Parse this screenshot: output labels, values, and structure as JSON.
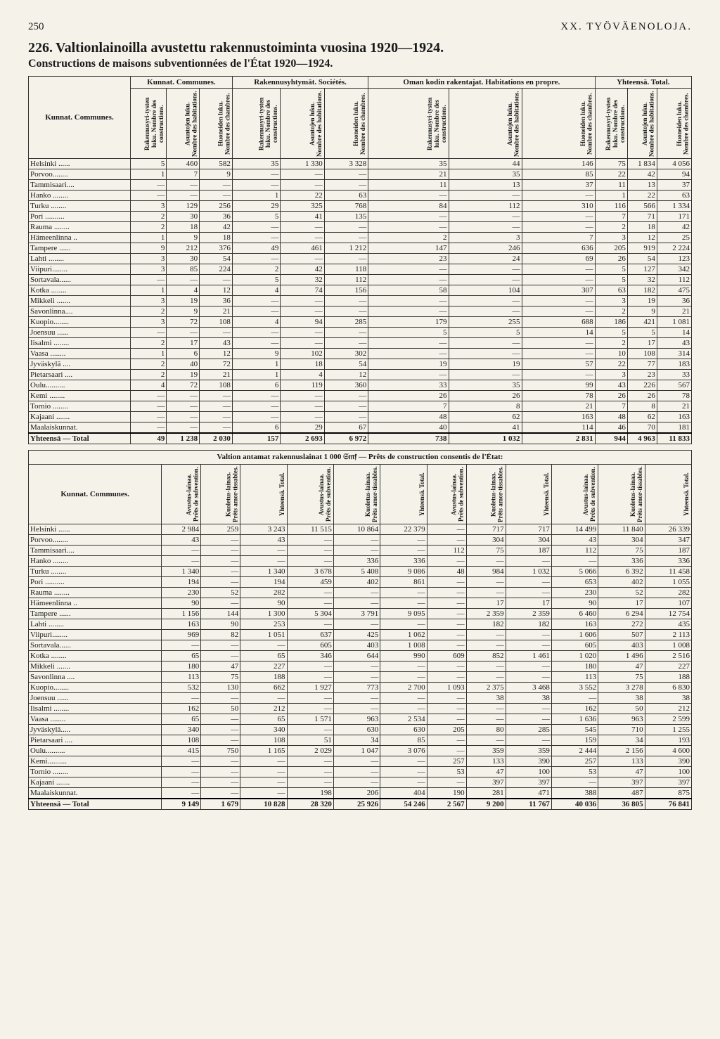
{
  "page": {
    "number": "250",
    "section": "XX. TYÖVÄENOLOJA."
  },
  "title": {
    "num": "226.",
    "main": "Valtionlainoilla avustettu rakennustoiminta vuosina 1920—1924.",
    "sub": "Constructions de maisons subventionnées de l'État 1920—1924."
  },
  "t1": {
    "rowLabel": "Kunnat.\nCommunes.",
    "groups": [
      "Kunnat. Communes.",
      "Rakennusyhtymät. Sociétés.",
      "Oman kodin rakentajat. Habitations en propre.",
      "Yhteensä. Total."
    ],
    "cols": [
      "Rakennusyri-tysten luku. Nombre des constructions.",
      "Asuntojen luku. Nombre des habitations.",
      "Huoneiden luku. Nombre des chambres.",
      "Rakennusyri-tysten luku. Nombre des constructions.",
      "Asuntojen luku. Nombre des habitations.",
      "Huoneiden luku. Nombre des chambres.",
      "Rakennusyri-tysten luku. Nombre des constructions.",
      "Asuntojen luku. Nombre des habitations.",
      "Huoneiden luku. Nombre des chambres.",
      "Rakennusyri-tysten luku. Nombre des constructions.",
      "Asuntojen luku. Nombre des habitations.",
      "Huoneiden luku. Nombre des chambres."
    ],
    "rows": [
      {
        "n": "Helsinki ......",
        "v": [
          "5",
          "460",
          "582",
          "35",
          "1 330",
          "3 328",
          "35",
          "44",
          "146",
          "75",
          "1 834",
          "4 056"
        ]
      },
      {
        "n": "Porvoo........",
        "v": [
          "1",
          "7",
          "9",
          "—",
          "—",
          "—",
          "21",
          "35",
          "85",
          "22",
          "42",
          "94"
        ]
      },
      {
        "n": "Tammisaari....",
        "v": [
          "—",
          "—",
          "—",
          "—",
          "—",
          "—",
          "11",
          "13",
          "37",
          "11",
          "13",
          "37"
        ]
      },
      {
        "n": "Hanko ........",
        "v": [
          "—",
          "—",
          "—",
          "1",
          "22",
          "63",
          "—",
          "—",
          "—",
          "1",
          "22",
          "63"
        ]
      },
      {
        "n": "Turku ........",
        "v": [
          "3",
          "129",
          "256",
          "29",
          "325",
          "768",
          "84",
          "112",
          "310",
          "116",
          "566",
          "1 334"
        ]
      },
      {
        "n": "Pori ..........",
        "v": [
          "2",
          "30",
          "36",
          "5",
          "41",
          "135",
          "—",
          "—",
          "—",
          "7",
          "71",
          "171"
        ]
      },
      {
        "n": "Rauma ........",
        "v": [
          "2",
          "18",
          "42",
          "—",
          "—",
          "—",
          "—",
          "—",
          "—",
          "2",
          "18",
          "42"
        ]
      },
      {
        "n": "Hämeenlinna ..",
        "v": [
          "1",
          "9",
          "18",
          "—",
          "—",
          "—",
          "2",
          "3",
          "7",
          "3",
          "12",
          "25"
        ]
      },
      {
        "n": "Tampere ......",
        "v": [
          "9",
          "212",
          "376",
          "49",
          "461",
          "1 212",
          "147",
          "246",
          "636",
          "205",
          "919",
          "2 224"
        ]
      },
      {
        "n": "Lahti ........",
        "v": [
          "3",
          "30",
          "54",
          "—",
          "—",
          "—",
          "23",
          "24",
          "69",
          "26",
          "54",
          "123"
        ]
      },
      {
        "n": "Viipuri........",
        "v": [
          "3",
          "85",
          "224",
          "2",
          "42",
          "118",
          "—",
          "—",
          "—",
          "5",
          "127",
          "342"
        ]
      },
      {
        "n": "Sortavala......",
        "v": [
          "—",
          "—",
          "—",
          "5",
          "32",
          "112",
          "—",
          "—",
          "—",
          "5",
          "32",
          "112"
        ]
      },
      {
        "n": "Kotka ........",
        "v": [
          "1",
          "4",
          "12",
          "4",
          "74",
          "156",
          "58",
          "104",
          "307",
          "63",
          "182",
          "475"
        ]
      },
      {
        "n": "Mikkeli .......",
        "v": [
          "3",
          "19",
          "36",
          "—",
          "—",
          "—",
          "—",
          "—",
          "—",
          "3",
          "19",
          "36"
        ]
      },
      {
        "n": "Savonlinna....",
        "v": [
          "2",
          "9",
          "21",
          "—",
          "—",
          "—",
          "—",
          "—",
          "—",
          "2",
          "9",
          "21"
        ]
      },
      {
        "n": "Kuopio........",
        "v": [
          "3",
          "72",
          "108",
          "4",
          "94",
          "285",
          "179",
          "255",
          "688",
          "186",
          "421",
          "1 081"
        ]
      },
      {
        "n": "Joensuu ......",
        "v": [
          "—",
          "—",
          "—",
          "—",
          "—",
          "—",
          "5",
          "5",
          "14",
          "5",
          "5",
          "14"
        ]
      },
      {
        "n": "Iisalmi ........",
        "v": [
          "2",
          "17",
          "43",
          "—",
          "—",
          "—",
          "—",
          "—",
          "—",
          "2",
          "17",
          "43"
        ]
      },
      {
        "n": "Vaasa ........",
        "v": [
          "1",
          "6",
          "12",
          "9",
          "102",
          "302",
          "—",
          "—",
          "—",
          "10",
          "108",
          "314"
        ]
      },
      {
        "n": "Jyväskylä ....",
        "v": [
          "2",
          "40",
          "72",
          "1",
          "18",
          "54",
          "19",
          "19",
          "57",
          "22",
          "77",
          "183"
        ]
      },
      {
        "n": "Pietarsaari ....",
        "v": [
          "2",
          "19",
          "21",
          "1",
          "4",
          "12",
          "—",
          "—",
          "—",
          "3",
          "23",
          "33"
        ]
      },
      {
        "n": "Oulu..........",
        "v": [
          "4",
          "72",
          "108",
          "6",
          "119",
          "360",
          "33",
          "35",
          "99",
          "43",
          "226",
          "567"
        ]
      },
      {
        "n": "Kemi ........",
        "v": [
          "—",
          "—",
          "—",
          "—",
          "—",
          "—",
          "26",
          "26",
          "78",
          "26",
          "26",
          "78"
        ]
      },
      {
        "n": "Tornio ........",
        "v": [
          "—",
          "—",
          "—",
          "—",
          "—",
          "—",
          "7",
          "8",
          "21",
          "7",
          "8",
          "21"
        ]
      },
      {
        "n": "Kajaani .......",
        "v": [
          "—",
          "—",
          "—",
          "—",
          "—",
          "—",
          "48",
          "62",
          "163",
          "48",
          "62",
          "163"
        ]
      },
      {
        "n": "Maalaiskunnat.",
        "v": [
          "—",
          "—",
          "—",
          "6",
          "29",
          "67",
          "40",
          "41",
          "114",
          "46",
          "70",
          "181"
        ]
      }
    ],
    "total": {
      "n": "Yhteensä — Total",
      "v": [
        "49",
        "1 238",
        "2 030",
        "157",
        "2 693",
        "6 972",
        "738",
        "1 032",
        "2 831",
        "944",
        "4 963",
        "11 833"
      ]
    }
  },
  "t2": {
    "caption": "Valtion antamat rakennuslainat 1 000 𝔖𝔪𝔣 — Prêts de construction consentis de l'État:",
    "rowLabel": "Kunnat.\nCommunes.",
    "cols": [
      "Avustus-lainaa. Prêts de subvention.",
      "Kuoletus-lainaa. Prêts amor-tissables.",
      "Yhteensä. Total.",
      "Avustus-lainaa. Prêts de subvention.",
      "Kuoletus-lainaa. Prêts amor-tissables.",
      "Yhteensä. Total.",
      "Avustus-lainaa. Prêts de subvention.",
      "Kuoletus-lainaa. Prêts amor-tissables.",
      "Yhteensä. Total.",
      "Avustus-lainaa. Prêts de subvention.",
      "Kuoletus-lainaa. Prêts amor-tissables.",
      "Yhteensä. Total."
    ],
    "rows": [
      {
        "n": "Helsinki ......",
        "v": [
          "2 984",
          "259",
          "3 243",
          "11 515",
          "10 864",
          "22 379",
          "—",
          "717",
          "717",
          "14 499",
          "11 840",
          "26 339"
        ]
      },
      {
        "n": "Porvoo........",
        "v": [
          "43",
          "—",
          "43",
          "—",
          "—",
          "—",
          "—",
          "304",
          "304",
          "43",
          "304",
          "347"
        ]
      },
      {
        "n": "Tammisaari....",
        "v": [
          "—",
          "—",
          "—",
          "—",
          "—",
          "—",
          "112",
          "75",
          "187",
          "112",
          "75",
          "187"
        ]
      },
      {
        "n": "Hanko ........",
        "v": [
          "—",
          "—",
          "—",
          "—",
          "336",
          "336",
          "—",
          "—",
          "—",
          "—",
          "336",
          "336"
        ]
      },
      {
        "n": "Turku ........",
        "v": [
          "1 340",
          "—",
          "1 340",
          "3 678",
          "5 408",
          "9 086",
          "48",
          "984",
          "1 032",
          "5 066",
          "6 392",
          "11 458"
        ]
      },
      {
        "n": "Pori ..........",
        "v": [
          "194",
          "—",
          "194",
          "459",
          "402",
          "861",
          "—",
          "—",
          "—",
          "653",
          "402",
          "1 055"
        ]
      },
      {
        "n": "Rauma ........",
        "v": [
          "230",
          "52",
          "282",
          "—",
          "—",
          "—",
          "—",
          "—",
          "—",
          "230",
          "52",
          "282"
        ]
      },
      {
        "n": "Hämeenlinna ..",
        "v": [
          "90",
          "—",
          "90",
          "—",
          "—",
          "—",
          "—",
          "17",
          "17",
          "90",
          "17",
          "107"
        ]
      },
      {
        "n": "Tampere ......",
        "v": [
          "1 156",
          "144",
          "1 300",
          "5 304",
          "3 791",
          "9 095",
          "—",
          "2 359",
          "2 359",
          "6 460",
          "6 294",
          "12 754"
        ]
      },
      {
        "n": "Lahti ........",
        "v": [
          "163",
          "90",
          "253",
          "—",
          "—",
          "—",
          "—",
          "182",
          "182",
          "163",
          "272",
          "435"
        ]
      },
      {
        "n": "Viipuri........",
        "v": [
          "969",
          "82",
          "1 051",
          "637",
          "425",
          "1 062",
          "—",
          "—",
          "—",
          "1 606",
          "507",
          "2 113"
        ]
      },
      {
        "n": "Sortavala......",
        "v": [
          "—",
          "—",
          "—",
          "605",
          "403",
          "1 008",
          "—",
          "—",
          "—",
          "605",
          "403",
          "1 008"
        ]
      },
      {
        "n": "Kotka ........",
        "v": [
          "65",
          "—",
          "65",
          "346",
          "644",
          "990",
          "609",
          "852",
          "1 461",
          "1 020",
          "1 496",
          "2 516"
        ]
      },
      {
        "n": "Mikkeli .......",
        "v": [
          "180",
          "47",
          "227",
          "—",
          "—",
          "—",
          "—",
          "—",
          "—",
          "180",
          "47",
          "227"
        ]
      },
      {
        "n": "Savonlinna ....",
        "v": [
          "113",
          "75",
          "188",
          "—",
          "—",
          "—",
          "—",
          "—",
          "—",
          "113",
          "75",
          "188"
        ]
      },
      {
        "n": "Kuopio........",
        "v": [
          "532",
          "130",
          "662",
          "1 927",
          "773",
          "2 700",
          "1 093",
          "2 375",
          "3 468",
          "3 552",
          "3 278",
          "6 830"
        ]
      },
      {
        "n": "Joensuu ......",
        "v": [
          "—",
          "—",
          "—",
          "—",
          "—",
          "—",
          "—",
          "38",
          "38",
          "—",
          "38",
          "38"
        ]
      },
      {
        "n": "Iisalmi ........",
        "v": [
          "162",
          "50",
          "212",
          "—",
          "—",
          "—",
          "—",
          "—",
          "—",
          "162",
          "50",
          "212"
        ]
      },
      {
        "n": "Vaasa ........",
        "v": [
          "65",
          "—",
          "65",
          "1 571",
          "963",
          "2 534",
          "—",
          "—",
          "—",
          "1 636",
          "963",
          "2 599"
        ]
      },
      {
        "n": "Jyväskylä.....",
        "v": [
          "340",
          "—",
          "340",
          "—",
          "630",
          "630",
          "205",
          "80",
          "285",
          "545",
          "710",
          "1 255"
        ]
      },
      {
        "n": "Pietarsaari ....",
        "v": [
          "108",
          "—",
          "108",
          "51",
          "34",
          "85",
          "—",
          "—",
          "—",
          "159",
          "34",
          "193"
        ]
      },
      {
        "n": "Oulu..........",
        "v": [
          "415",
          "750",
          "1 165",
          "2 029",
          "1 047",
          "3 076",
          "—",
          "359",
          "359",
          "2 444",
          "2 156",
          "4 600"
        ]
      },
      {
        "n": "Kemi..........",
        "v": [
          "—",
          "—",
          "—",
          "—",
          "—",
          "—",
          "257",
          "133",
          "390",
          "257",
          "133",
          "390"
        ]
      },
      {
        "n": "Tornio ........",
        "v": [
          "—",
          "—",
          "—",
          "—",
          "—",
          "—",
          "53",
          "47",
          "100",
          "53",
          "47",
          "100"
        ]
      },
      {
        "n": "Kajaani .......",
        "v": [
          "—",
          "—",
          "—",
          "—",
          "—",
          "—",
          "—",
          "397",
          "397",
          "—",
          "397",
          "397"
        ]
      },
      {
        "n": "Maalaiskunnat.",
        "v": [
          "—",
          "—",
          "—",
          "198",
          "206",
          "404",
          "190",
          "281",
          "471",
          "388",
          "487",
          "875"
        ]
      }
    ],
    "total": {
      "n": "Yhteensä — Total",
      "v": [
        "9 149",
        "1 679",
        "10 828",
        "28 320",
        "25 926",
        "54 246",
        "2 567",
        "9 200",
        "11 767",
        "40 036",
        "36 805",
        "76 841"
      ]
    }
  }
}
